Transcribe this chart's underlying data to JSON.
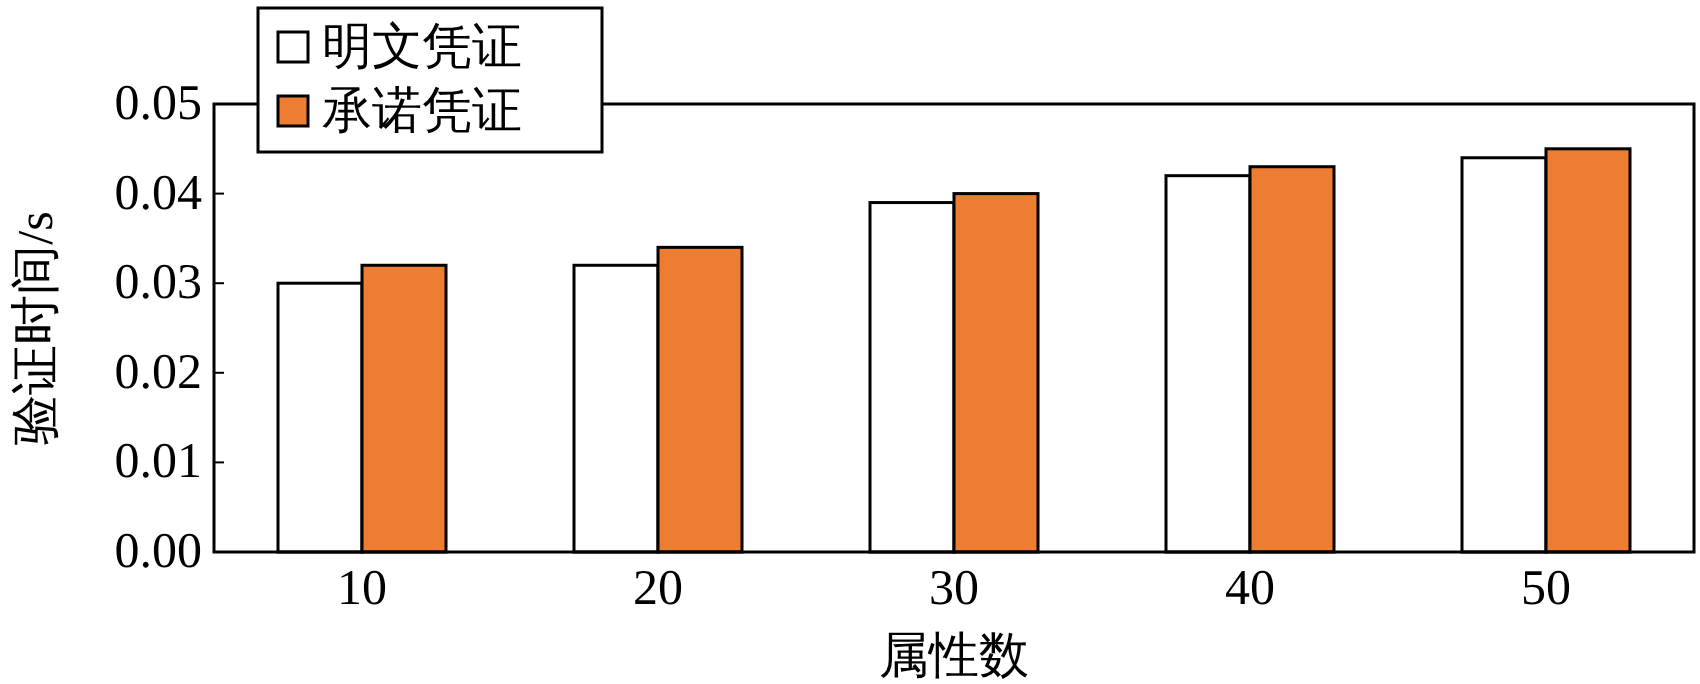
{
  "chart_data": {
    "type": "bar",
    "xlabel": "属性数",
    "ylabel": "验证时间/s",
    "categories": [
      "10",
      "20",
      "30",
      "40",
      "50"
    ],
    "series": [
      {
        "name": "明文凭证",
        "color": "#ffffff",
        "values": [
          0.03,
          0.032,
          0.039,
          0.042,
          0.044
        ]
      },
      {
        "name": "承诺凭证",
        "color": "#ed7d31",
        "values": [
          0.032,
          0.034,
          0.04,
          0.043,
          0.045
        ]
      }
    ],
    "ylim": [
      0,
      0.05
    ],
    "yticks": [
      {
        "value": 0,
        "label": "0.00"
      },
      {
        "value": 0.01,
        "label": "0.01"
      },
      {
        "value": 0.02,
        "label": "0.02"
      },
      {
        "value": 0.03,
        "label": "0.03"
      },
      {
        "value": 0.04,
        "label": "0.04"
      },
      {
        "value": 0.05,
        "label": "0.05"
      }
    ],
    "grid": false,
    "legend": "top left"
  }
}
